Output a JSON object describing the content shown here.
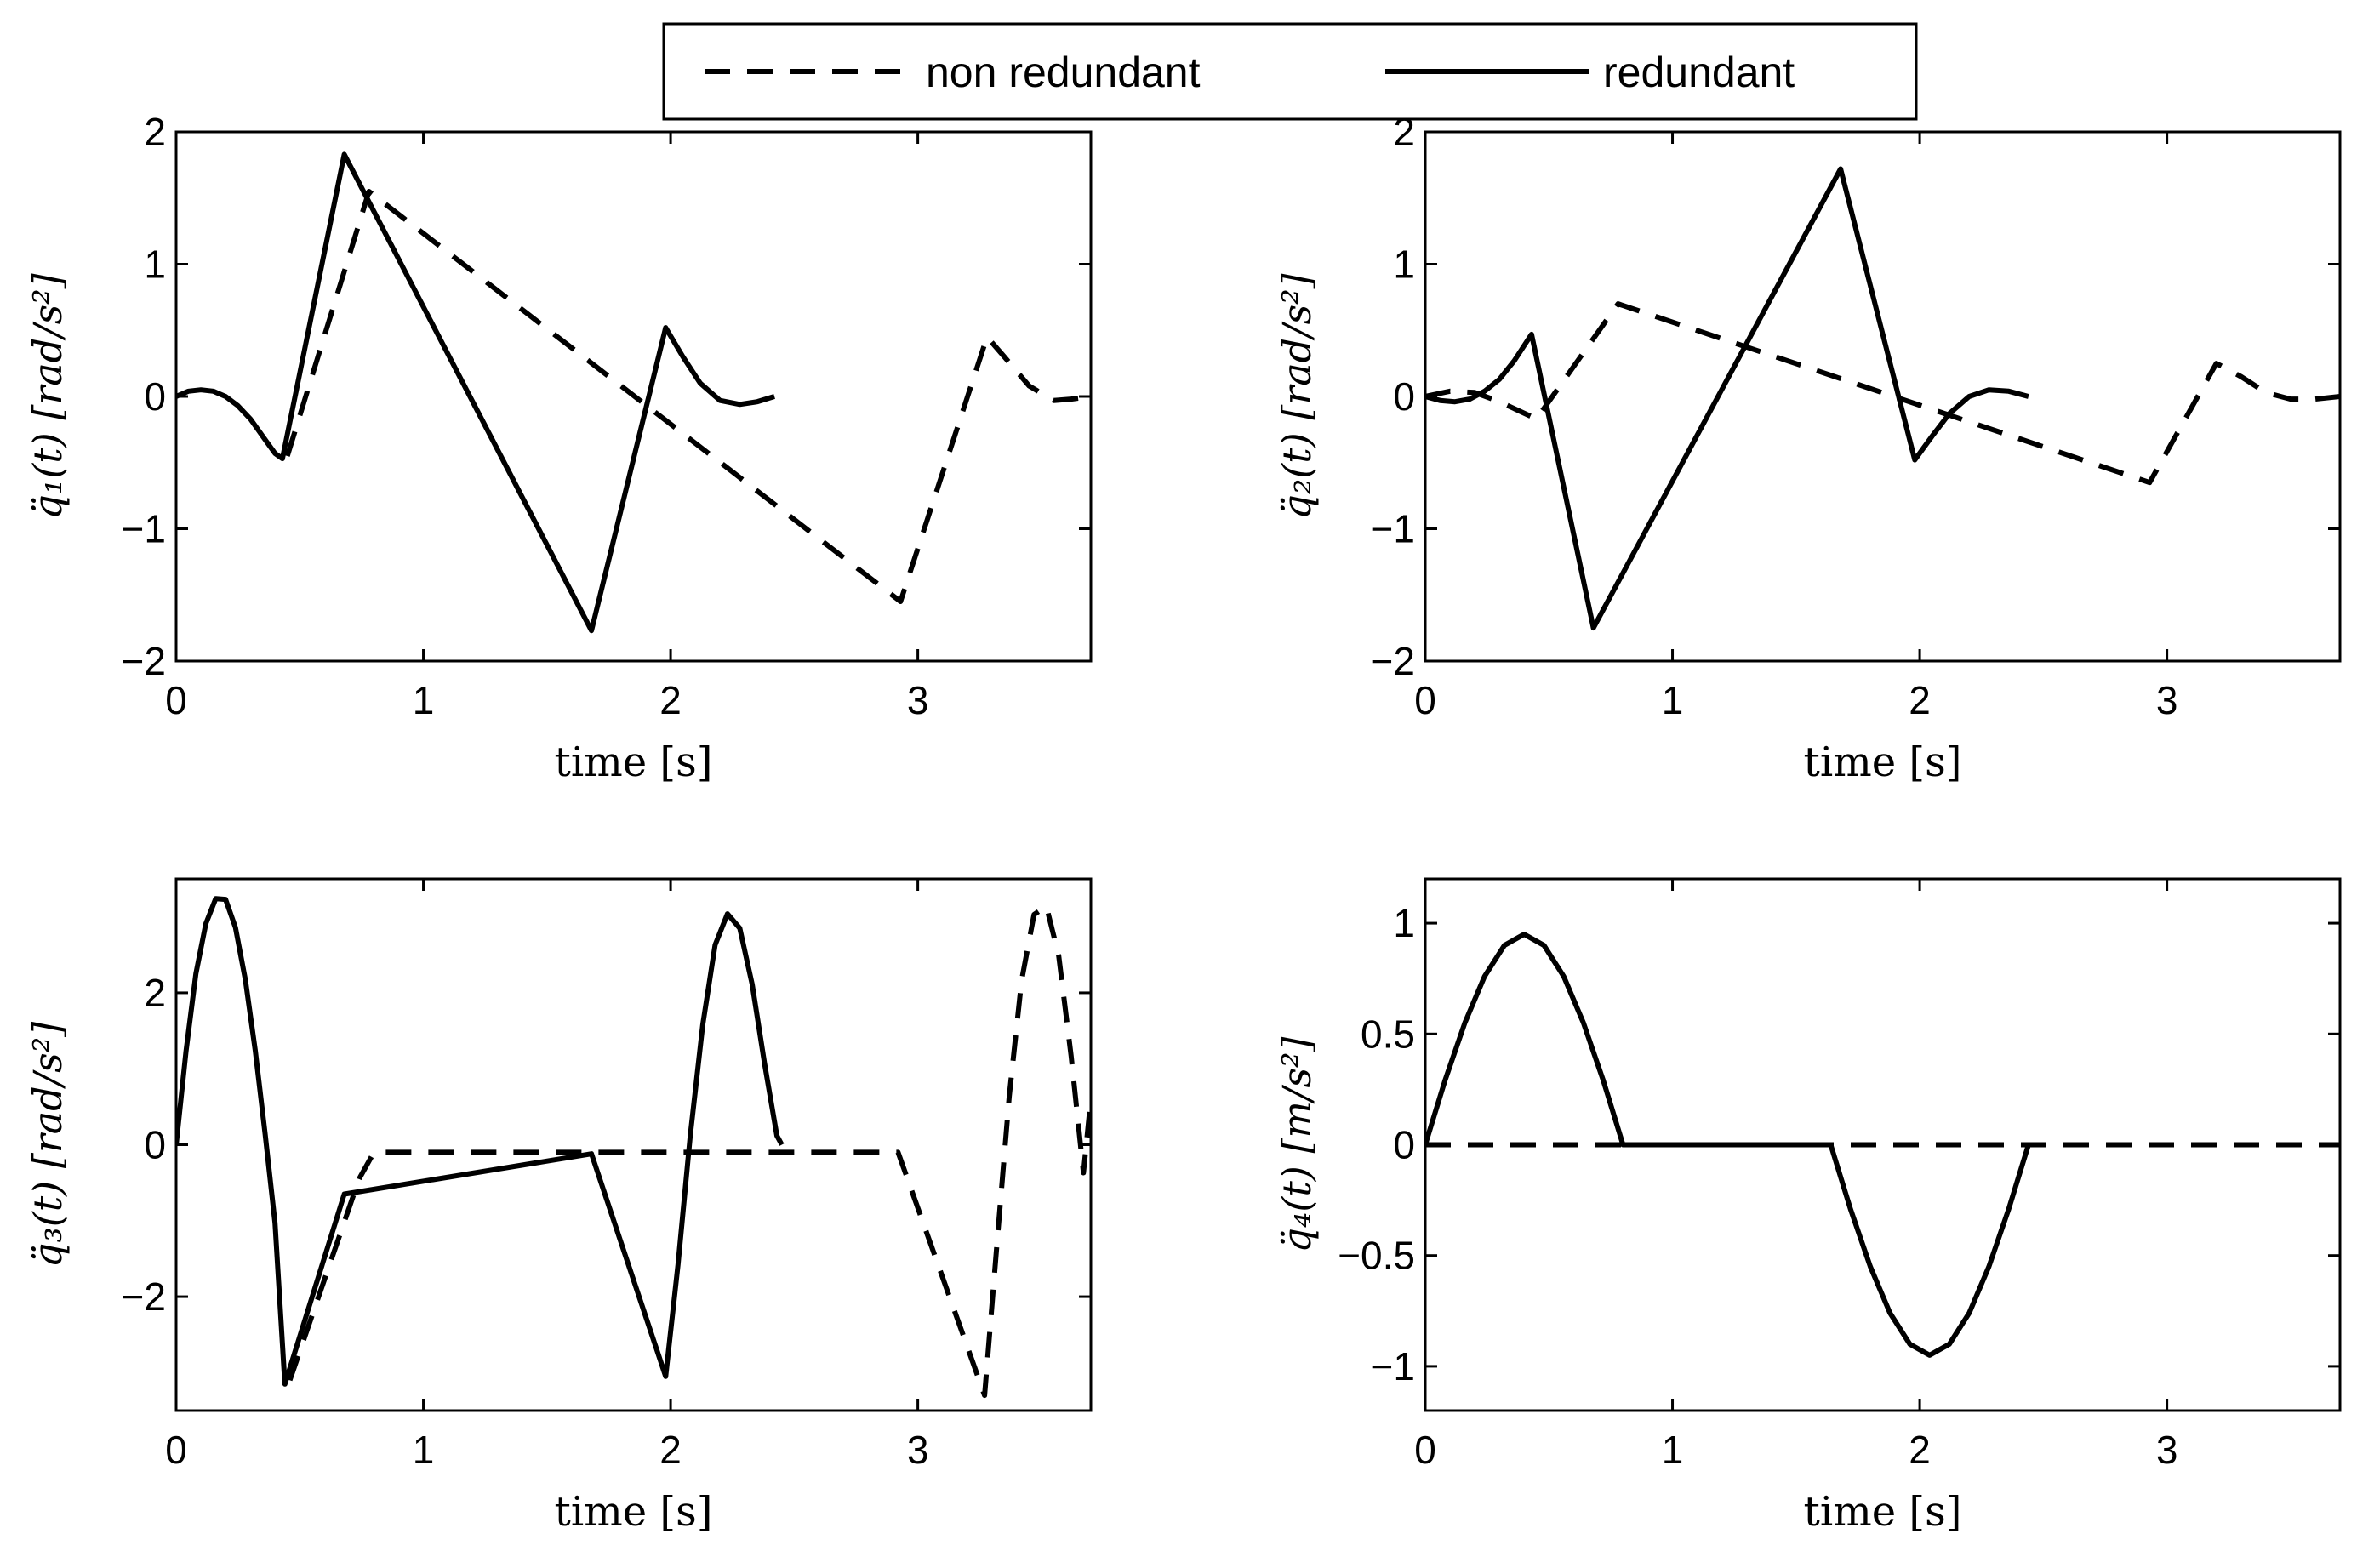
{
  "legend": {
    "entries": [
      {
        "label": "non redundant",
        "style": "dashed"
      },
      {
        "label": "redundant",
        "style": "solid"
      }
    ]
  },
  "chart_data": [
    {
      "type": "line",
      "xlabel": "time [s]",
      "ylabel": "q̈₁(t)  [rad/s²]",
      "xlim": [
        0,
        3.7
      ],
      "ylim": [
        -2,
        2
      ],
      "xticks": [
        "0",
        "1",
        "2",
        "3"
      ],
      "yticks": [
        "−2",
        "−1",
        "0",
        "1",
        "2"
      ],
      "series": [
        {
          "name": "redundant",
          "style": "solid",
          "x": [
            0,
            0.05,
            0.1,
            0.15,
            0.2,
            0.25,
            0.3,
            0.35,
            0.4,
            0.43,
            0.68,
            1.68,
            1.98,
            2.05,
            2.12,
            2.2,
            2.28,
            2.35,
            2.42
          ],
          "y": [
            0,
            0.04,
            0.05,
            0.04,
            0.0,
            -0.07,
            -0.17,
            -0.3,
            -0.43,
            -0.47,
            1.83,
            -1.77,
            0.52,
            0.3,
            0.1,
            -0.03,
            -0.06,
            -0.04,
            0
          ]
        },
        {
          "name": "non redundant",
          "style": "dashed",
          "x": [
            0.45,
            0.78,
            2.93,
            3.28,
            3.35,
            3.45,
            3.55,
            3.62,
            3.7
          ],
          "y": [
            -0.45,
            1.55,
            -1.55,
            0.45,
            0.3,
            0.08,
            -0.03,
            -0.02,
            0
          ]
        }
      ]
    },
    {
      "type": "line",
      "xlabel": "time [s]",
      "ylabel": "q̈₂(t)  [rad/s²]",
      "xlim": [
        0,
        3.7
      ],
      "ylim": [
        -2,
        2
      ],
      "xticks": [
        "0",
        "1",
        "2",
        "3"
      ],
      "yticks": [
        "−2",
        "−1",
        "0",
        "1",
        "2"
      ],
      "series": [
        {
          "name": "redundant",
          "style": "solid",
          "x": [
            0,
            0.06,
            0.12,
            0.18,
            0.24,
            0.3,
            0.36,
            0.43,
            0.68,
            1.68,
            1.98,
            2.05,
            2.12,
            2.2,
            2.28,
            2.36,
            2.44
          ],
          "y": [
            0,
            -0.03,
            -0.04,
            -0.02,
            0.04,
            0.13,
            0.27,
            0.47,
            -1.75,
            1.72,
            -0.48,
            -0.3,
            -0.13,
            0.0,
            0.05,
            0.04,
            0
          ]
        },
        {
          "name": "non redundant",
          "style": "dashed",
          "x": [
            0,
            0.1,
            0.2,
            0.3,
            0.45,
            0.78,
            2.93,
            3.2,
            3.3,
            3.4,
            3.5,
            3.6,
            3.7
          ],
          "y": [
            0,
            0.04,
            0.03,
            -0.04,
            -0.17,
            0.7,
            -0.65,
            0.25,
            0.15,
            0.03,
            -0.02,
            -0.02,
            0
          ]
        }
      ]
    },
    {
      "type": "line",
      "xlabel": "time [s]",
      "ylabel": "q̈₃(t)  [rad/s²]",
      "xlim": [
        0,
        3.7
      ],
      "ylim": [
        -3.5,
        3.5
      ],
      "xticks": [
        "0",
        "1",
        "2",
        "3"
      ],
      "yticks": [
        "−2",
        "0",
        "2"
      ],
      "series": [
        {
          "name": "redundant",
          "style": "solid",
          "x": [
            0,
            0.04,
            0.08,
            0.12,
            0.16,
            0.2,
            0.24,
            0.28,
            0.32,
            0.36,
            0.4,
            0.44,
            0.68,
            1.68,
            1.98,
            2.03,
            2.08,
            2.13,
            2.18,
            2.23,
            2.28,
            2.33,
            2.38,
            2.43,
            2.45
          ],
          "y": [
            0,
            1.23,
            2.25,
            2.91,
            3.24,
            3.23,
            2.86,
            2.17,
            1.24,
            0.14,
            -1.03,
            -3.15,
            -0.65,
            -0.12,
            -3.05,
            -1.58,
            0.13,
            1.58,
            2.63,
            3.04,
            2.85,
            2.11,
            1.07,
            0.12,
            0
          ]
        },
        {
          "name": "non redundant",
          "style": "dashed",
          "x": [
            0.46,
            0.74,
            0.8,
            2.92,
            3.27,
            3.32,
            3.37,
            3.42,
            3.47,
            3.52,
            3.57,
            3.62,
            3.67,
            3.7
          ],
          "y": [
            -3.1,
            -0.45,
            -0.1,
            -0.1,
            -3.3,
            -1.31,
            0.64,
            2.16,
            3.03,
            3.14,
            2.49,
            1.17,
            -0.37,
            0.6
          ]
        }
      ]
    },
    {
      "type": "line",
      "xlabel": "time [s]",
      "ylabel": "q̈₄(t)  [m/s²]",
      "xlim": [
        0,
        3.7
      ],
      "ylim": [
        -1.2,
        1.2
      ],
      "xticks": [
        "0",
        "1",
        "2",
        "3"
      ],
      "yticks": [
        "−1",
        "−0.5",
        "0",
        "0.5",
        "1"
      ],
      "series": [
        {
          "name": "redundant",
          "style": "solid",
          "x": [
            0,
            0.08,
            0.16,
            0.24,
            0.32,
            0.4,
            0.48,
            0.56,
            0.64,
            0.72,
            0.8,
            1.64,
            1.72,
            1.8,
            1.88,
            1.96,
            2.04,
            2.12,
            2.2,
            2.28,
            2.36,
            2.44
          ],
          "y": [
            0,
            0.29,
            0.55,
            0.76,
            0.9,
            0.95,
            0.9,
            0.76,
            0.55,
            0.29,
            0,
            0,
            -0.29,
            -0.55,
            -0.76,
            -0.9,
            -0.95,
            -0.9,
            -0.76,
            -0.55,
            -0.29,
            0
          ]
        },
        {
          "name": "non redundant",
          "style": "dashed",
          "x": [
            0,
            3.7
          ],
          "y": [
            0,
            0
          ]
        }
      ]
    }
  ]
}
